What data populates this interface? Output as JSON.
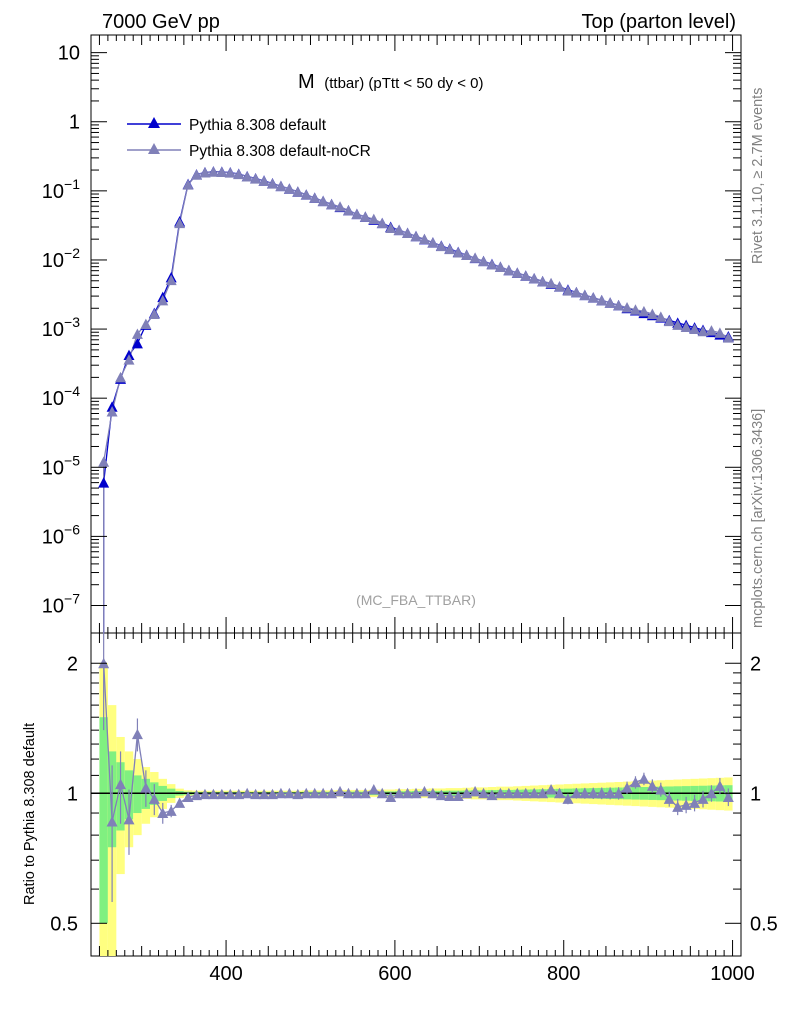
{
  "header": {
    "left": "7000 GeV pp",
    "right": "Top (parton level)"
  },
  "plot_title": {
    "main": "M",
    "sub": "(ttbar) (pTtt < 50 dy < 0)"
  },
  "side_labels": {
    "rivet": "Rivet 3.1.10, ≥ 2.7M events",
    "source": "mcplots.cern.ch [arXiv:1306.3436]"
  },
  "watermark": "(MC_FBA_TTBAR)",
  "ratio_ylabel": "Ratio to Pythia 8.308 default",
  "legend": [
    {
      "label": "Pythia 8.308 default",
      "color": "#0000cc"
    },
    {
      "label": "Pythia 8.308 default-noCR",
      "color": "#8080b8"
    }
  ],
  "upper_axis": {
    "scale": "log",
    "ylim": [
      4e-08,
      18
    ],
    "tick_labels": [
      "10",
      "1",
      "10^-1",
      "10^-2",
      "10^-3",
      "10^-4",
      "10^-5",
      "10^-6",
      "10^-7"
    ]
  },
  "ratio_axis": {
    "scale": "log",
    "ylim": [
      0.42,
      2.35
    ],
    "tick_labels": [
      "2",
      "1",
      "0.5"
    ]
  },
  "x_axis": {
    "xlim": [
      240,
      1010
    ],
    "tick_labels": [
      "400",
      "600",
      "800",
      "1000"
    ]
  },
  "chart_data": {
    "type": "line",
    "x": [
      255,
      265,
      275,
      285,
      295,
      305,
      315,
      325,
      335,
      345,
      355,
      365,
      375,
      385,
      395,
      405,
      415,
      425,
      435,
      445,
      455,
      465,
      475,
      485,
      495,
      505,
      515,
      525,
      535,
      545,
      555,
      565,
      575,
      585,
      595,
      605,
      615,
      625,
      635,
      645,
      655,
      665,
      675,
      685,
      695,
      705,
      715,
      725,
      735,
      745,
      755,
      765,
      775,
      785,
      795,
      805,
      815,
      825,
      835,
      845,
      855,
      865,
      875,
      885,
      895,
      905,
      915,
      925,
      935,
      945,
      955,
      965,
      975,
      985,
      995
    ],
    "series": [
      {
        "name": "Pythia 8.308 default",
        "color": "#0000cc",
        "values": [
          6e-06,
          7.5e-05,
          0.00019,
          0.00042,
          0.00062,
          0.00115,
          0.0017,
          0.0029,
          0.0056,
          0.036,
          0.125,
          0.172,
          0.185,
          0.19,
          0.188,
          0.184,
          0.175,
          0.162,
          0.151,
          0.14,
          0.128,
          0.117,
          0.107,
          0.097,
          0.088,
          0.079,
          0.071,
          0.064,
          0.058,
          0.052,
          0.046,
          0.042,
          0.038,
          0.034,
          0.03,
          0.027,
          0.0245,
          0.022,
          0.0198,
          0.0178,
          0.016,
          0.0145,
          0.013,
          0.0118,
          0.0106,
          0.0096,
          0.0087,
          0.0079,
          0.0071,
          0.0065,
          0.0059,
          0.0054,
          0.0049,
          0.0045,
          0.0041,
          0.0037,
          0.0034,
          0.0031,
          0.00285,
          0.0026,
          0.0024,
          0.0022,
          0.002,
          0.00185,
          0.0017,
          0.00158,
          0.00146,
          0.00134,
          0.00123,
          0.00114,
          0.00105,
          0.00097,
          0.0009,
          0.00083,
          0.00078
        ]
      },
      {
        "name": "Pythia 8.308 default-noCR",
        "color": "#8080b8",
        "values": [
          1.2e-05,
          6.4e-05,
          0.0002,
          0.00036,
          0.00085,
          0.00118,
          0.00165,
          0.0026,
          0.0051,
          0.034,
          0.123,
          0.171,
          0.184,
          0.189,
          0.187,
          0.183,
          0.174,
          0.161,
          0.15,
          0.139,
          0.127,
          0.117,
          0.107,
          0.097,
          0.088,
          0.079,
          0.071,
          0.064,
          0.059,
          0.052,
          0.046,
          0.042,
          0.039,
          0.034,
          0.029,
          0.027,
          0.0245,
          0.022,
          0.02,
          0.0178,
          0.0158,
          0.0143,
          0.0128,
          0.0118,
          0.0107,
          0.0096,
          0.0086,
          0.0079,
          0.0071,
          0.0065,
          0.0059,
          0.0054,
          0.0049,
          0.0046,
          0.0041,
          0.0036,
          0.0034,
          0.0031,
          0.00285,
          0.0026,
          0.0024,
          0.0022,
          0.00205,
          0.0019,
          0.0018,
          0.00165,
          0.0015,
          0.0013,
          0.00115,
          0.00107,
          0.001,
          0.00093,
          0.00095,
          0.00088,
          0.00075
        ]
      }
    ],
    "ratio": {
      "name": "Pythia 8.308 default-noCR",
      "values": [
        2.0,
        0.86,
        1.05,
        0.87,
        1.37,
        1.03,
        0.97,
        0.9,
        0.91,
        0.95,
        0.98,
        0.99,
        0.995,
        0.995,
        0.995,
        0.995,
        0.995,
        1.0,
        0.995,
        0.995,
        0.995,
        1.0,
        1.0,
        0.995,
        1.0,
        1.0,
        1.0,
        1.0,
        1.01,
        1.0,
        1.0,
        1.0,
        1.02,
        1.0,
        0.98,
        1.0,
        1.0,
        1.0,
        1.01,
        1.0,
        0.99,
        0.985,
        0.985,
        1.0,
        1.01,
        1.0,
        0.99,
        1.0,
        1.0,
        1.0,
        1.0,
        1.0,
        1.0,
        1.02,
        1.0,
        0.97,
        1.0,
        1.0,
        1.0,
        1.0,
        1.0,
        1.0,
        1.03,
        1.06,
        1.08,
        1.04,
        1.02,
        0.97,
        0.93,
        0.94,
        0.95,
        0.97,
        1.0,
        1.04,
        0.98
      ],
      "errors": [
        0.6,
        0.3,
        0.2,
        0.15,
        0.12,
        0.1,
        0.08,
        0.05,
        0.03,
        0.015,
        0.01,
        0.008,
        0.008,
        0.008,
        0.008,
        0.008,
        0.008,
        0.008,
        0.008,
        0.008,
        0.008,
        0.008,
        0.008,
        0.008,
        0.009,
        0.009,
        0.009,
        0.01,
        0.01,
        0.01,
        0.01,
        0.01,
        0.012,
        0.012,
        0.012,
        0.013,
        0.013,
        0.014,
        0.014,
        0.015,
        0.015,
        0.016,
        0.016,
        0.017,
        0.018,
        0.018,
        0.019,
        0.02,
        0.02,
        0.021,
        0.022,
        0.023,
        0.024,
        0.025,
        0.026,
        0.027,
        0.028,
        0.029,
        0.03,
        0.031,
        0.032,
        0.033,
        0.034,
        0.035,
        0.036,
        0.037,
        0.038,
        0.039,
        0.04,
        0.041,
        0.042,
        0.043,
        0.044,
        0.045,
        0.046
      ],
      "band_inner": [
        0.5,
        0.25,
        0.18,
        0.13,
        0.1,
        0.08,
        0.06,
        0.04,
        0.025,
        0.012,
        0.008,
        0.007,
        0.007,
        0.007,
        0.007,
        0.007,
        0.007,
        0.007,
        0.007,
        0.007,
        0.007,
        0.007,
        0.007,
        0.007,
        0.008,
        0.008,
        0.008,
        0.008,
        0.009,
        0.009,
        0.009,
        0.009,
        0.01,
        0.01,
        0.01,
        0.011,
        0.011,
        0.012,
        0.012,
        0.013,
        0.013,
        0.014,
        0.014,
        0.015,
        0.016,
        0.016,
        0.017,
        0.018,
        0.018,
        0.019,
        0.02,
        0.021,
        0.022,
        0.023,
        0.024,
        0.025,
        0.026,
        0.027,
        0.028,
        0.029,
        0.03,
        0.031,
        0.032,
        0.033,
        0.034,
        0.035,
        0.036,
        0.037,
        0.038,
        0.039,
        0.04,
        0.041,
        0.042,
        0.043,
        0.044
      ],
      "band_outer": [
        1.0,
        0.6,
        0.35,
        0.25,
        0.2,
        0.15,
        0.12,
        0.08,
        0.05,
        0.025,
        0.016,
        0.014,
        0.014,
        0.014,
        0.014,
        0.014,
        0.014,
        0.014,
        0.014,
        0.014,
        0.014,
        0.014,
        0.014,
        0.014,
        0.016,
        0.016,
        0.016,
        0.016,
        0.018,
        0.018,
        0.018,
        0.018,
        0.02,
        0.02,
        0.02,
        0.022,
        0.022,
        0.024,
        0.024,
        0.026,
        0.026,
        0.028,
        0.028,
        0.03,
        0.032,
        0.032,
        0.034,
        0.036,
        0.036,
        0.038,
        0.04,
        0.042,
        0.044,
        0.046,
        0.048,
        0.05,
        0.052,
        0.054,
        0.056,
        0.058,
        0.06,
        0.062,
        0.064,
        0.066,
        0.068,
        0.07,
        0.072,
        0.074,
        0.076,
        0.078,
        0.08,
        0.082,
        0.084,
        0.086,
        0.088
      ]
    }
  }
}
